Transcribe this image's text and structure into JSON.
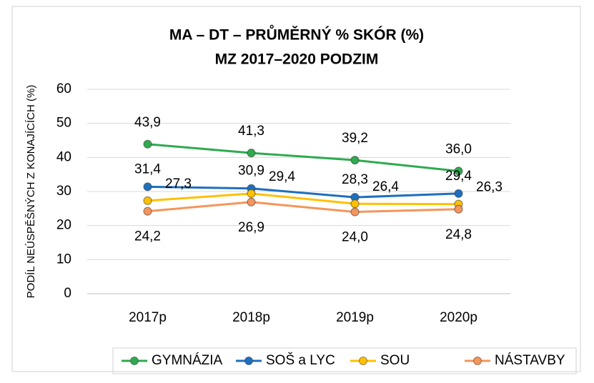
{
  "chart_data": {
    "type": "line",
    "title": "MA – DT – PRŮMĚRNÝ % SKÓR (%)",
    "subtitle": "MZ 2017–2020 PODZIM",
    "y_label": "PODÍL NEÚSPĚŠNÝCH Z KONAJÍCÍCH (%)",
    "categories": [
      "2017p",
      "2018p",
      "2019p",
      "2020p"
    ],
    "series": [
      {
        "name": "GYMNÁZIA",
        "color": "#2eaa4f",
        "values": [
          43.9,
          41.3,
          39.2,
          36.0
        ],
        "value_labels": [
          "43,9",
          "41,3",
          "39,2",
          "36,0"
        ]
      },
      {
        "name": "SOŠ a LYC",
        "color": "#1f6fc0",
        "values": [
          31.4,
          30.9,
          28.3,
          29.4
        ],
        "value_labels": [
          "31,4",
          "30,9",
          "28,3",
          "29,4"
        ]
      },
      {
        "name": "SOU",
        "color": "#ffc000",
        "values": [
          27.3,
          29.4,
          26.4,
          26.3
        ],
        "value_labels": [
          "27,3",
          "29,4",
          "26,4",
          "26,3"
        ]
      },
      {
        "name": "NÁSTAVBY",
        "color": "#f4955a",
        "values": [
          24.2,
          26.9,
          24.0,
          24.8
        ],
        "value_labels": [
          "24,2",
          "26,9",
          "24,0",
          "24,8"
        ]
      }
    ],
    "ylim": [
      0,
      60
    ],
    "yticks": [
      0,
      10,
      20,
      30,
      40,
      50,
      60
    ],
    "grid": true,
    "legend": "bottom"
  }
}
